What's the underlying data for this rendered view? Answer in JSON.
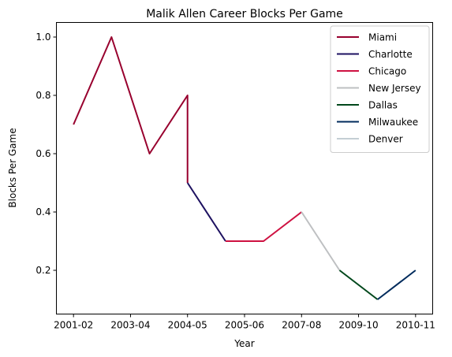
{
  "chart_data": {
    "type": "line",
    "title": "Malik Allen Career Blocks Per Game",
    "xlabel": "Year",
    "ylabel": "Blocks Per Game",
    "x_ticks": [
      "2001-02",
      "2003-04",
      "2004-05",
      "2005-06",
      "2007-08",
      "2009-10",
      "2010-11"
    ],
    "y_ticks": [
      "0.2",
      "0.4",
      "0.6",
      "0.8",
      "1.0"
    ],
    "ylim": [
      0.05,
      1.05
    ],
    "grid": false,
    "legend_position": "top-right",
    "series": [
      {
        "name": "Miami",
        "color": "#98002E",
        "points": [
          [
            0,
            0.7
          ],
          [
            1,
            1.0
          ],
          [
            2,
            0.6
          ],
          [
            3,
            0.8
          ],
          [
            3,
            0.5
          ]
        ]
      },
      {
        "name": "Charlotte",
        "color": "#1D1160",
        "points": [
          [
            3,
            0.5
          ],
          [
            4,
            0.3
          ]
        ]
      },
      {
        "name": "Chicago",
        "color": "#CE1141",
        "points": [
          [
            4,
            0.3
          ],
          [
            5,
            0.3
          ],
          [
            6,
            0.4
          ]
        ]
      },
      {
        "name": "New Jersey",
        "color": "#BEC0C2",
        "points": [
          [
            6,
            0.4
          ],
          [
            7,
            0.2
          ]
        ]
      },
      {
        "name": "Dallas",
        "color": "#00471B",
        "points": [
          [
            7,
            0.2
          ],
          [
            8,
            0.1
          ]
        ]
      },
      {
        "name": "Milwaukee",
        "color": "#002B5C",
        "points": [
          [
            8,
            0.1
          ],
          [
            9,
            0.2
          ]
        ]
      },
      {
        "name": "Denver",
        "color": "#C4CED4",
        "points": []
      }
    ]
  }
}
